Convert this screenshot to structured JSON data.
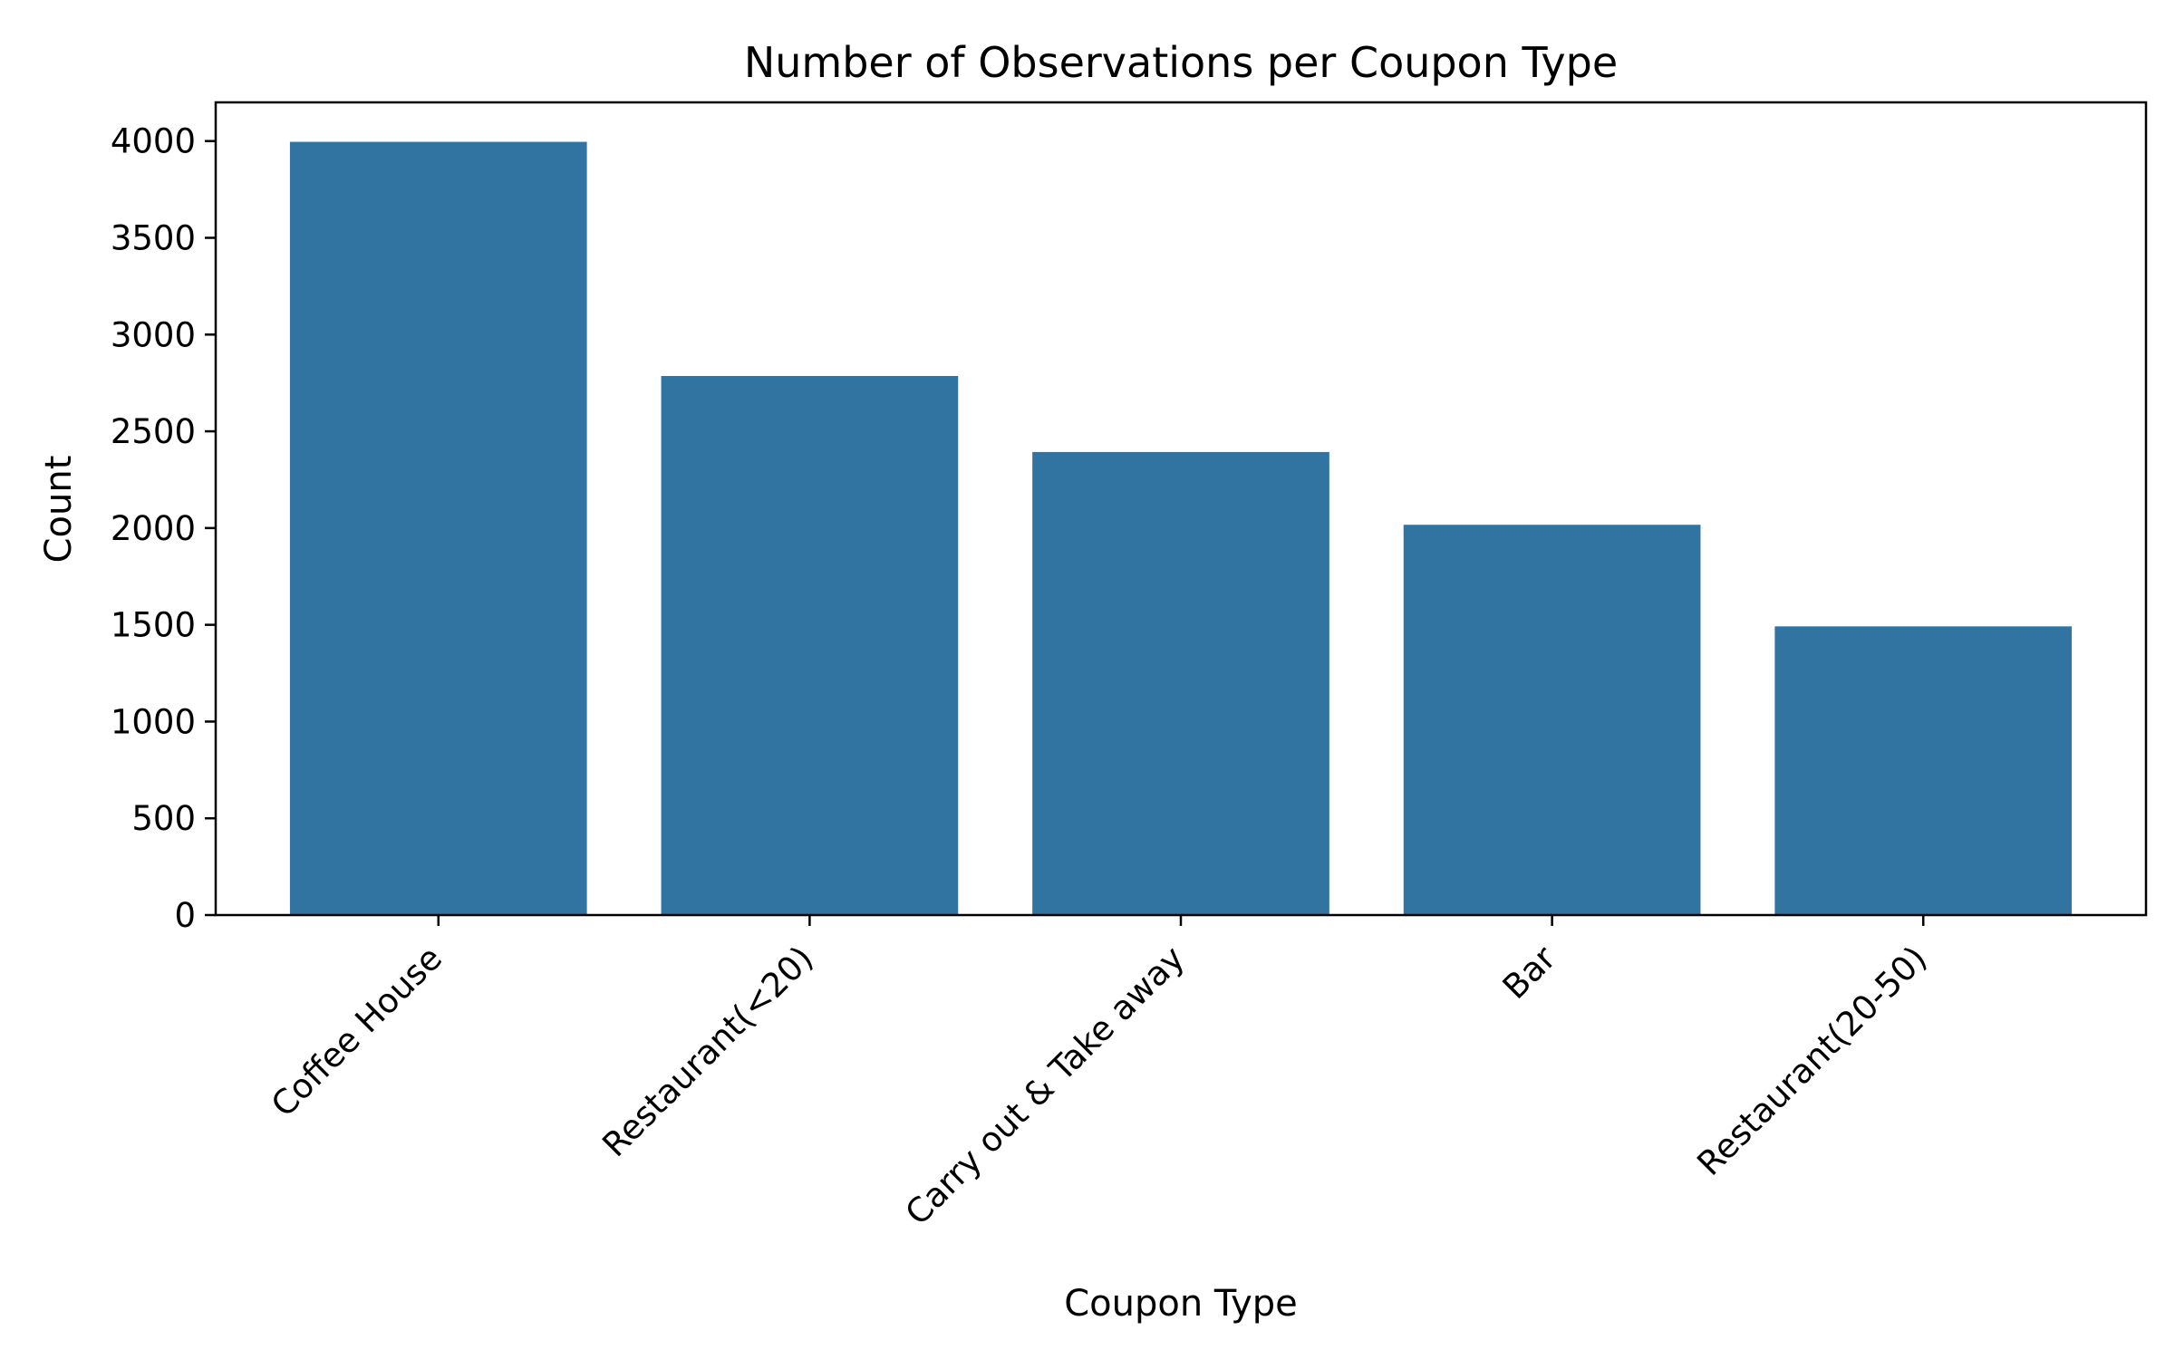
{
  "chart_data": {
    "type": "bar",
    "title": "Number of Observations per Coupon Type",
    "xlabel": "Coupon Type",
    "ylabel": "Count",
    "categories": [
      "Coffee House",
      "Restaurant(<20)",
      "Carry out & Take away",
      "Bar",
      "Restaurant(20-50)"
    ],
    "values": [
      3996,
      2786,
      2393,
      2017,
      1492
    ],
    "ylim": [
      0,
      4200
    ],
    "yticks": [
      0,
      500,
      1000,
      1500,
      2000,
      2500,
      3000,
      3500,
      4000
    ],
    "ytick_labels": [
      "0",
      "500",
      "1000",
      "1500",
      "2000",
      "2500",
      "3000",
      "3500",
      "4000"
    ],
    "bar_color": "#3274a1",
    "grid": false,
    "legend": "none"
  }
}
